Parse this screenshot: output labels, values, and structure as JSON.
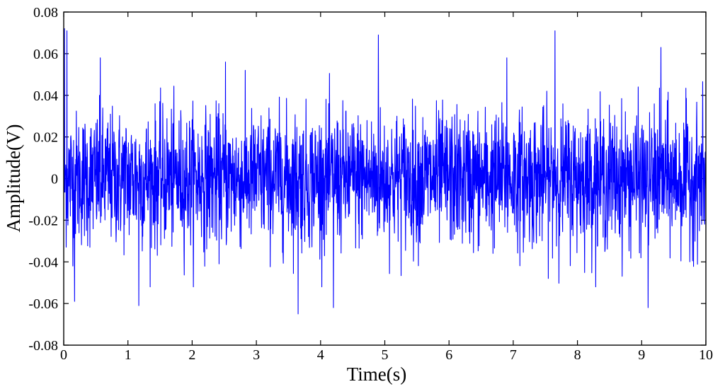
{
  "chart_data": {
    "type": "line",
    "title": "",
    "xlabel": "Time(s)",
    "ylabel": "Amplitude(V)",
    "xlim": [
      0,
      10
    ],
    "ylim": [
      -0.08,
      0.08
    ],
    "xticks": [
      0,
      1,
      2,
      3,
      4,
      5,
      6,
      7,
      8,
      9,
      10
    ],
    "xtick_labels": [
      "0",
      "1",
      "2",
      "3",
      "4",
      "5",
      "6",
      "7",
      "8",
      "9",
      "10"
    ],
    "yticks": [
      -0.08,
      -0.06,
      -0.04,
      -0.02,
      0,
      0.02,
      0.04,
      0.06,
      0.08
    ],
    "ytick_labels": [
      "-0.08",
      "-0.06",
      "-0.04",
      "-0.02",
      "0",
      "0.02",
      "0.04",
      "0.06",
      "0.08"
    ],
    "grid": false,
    "legend": "none",
    "series": [
      {
        "color": "#0000ff",
        "peaks": [
          {
            "x": 0.01,
            "y": 0.072
          },
          {
            "x": 0.05,
            "y": 0.071
          },
          {
            "x": 0.17,
            "y": -0.059
          },
          {
            "x": 0.57,
            "y": 0.058
          },
          {
            "x": 1.17,
            "y": -0.061
          },
          {
            "x": 2.52,
            "y": 0.056
          },
          {
            "x": 3.65,
            "y": -0.065
          },
          {
            "x": 4.2,
            "y": -0.062
          },
          {
            "x": 4.9,
            "y": 0.069
          },
          {
            "x": 6.9,
            "y": 0.058
          },
          {
            "x": 7.65,
            "y": 0.071
          },
          {
            "x": 9.1,
            "y": -0.062
          },
          {
            "x": 9.3,
            "y": 0.063
          }
        ]
      }
    ]
  }
}
